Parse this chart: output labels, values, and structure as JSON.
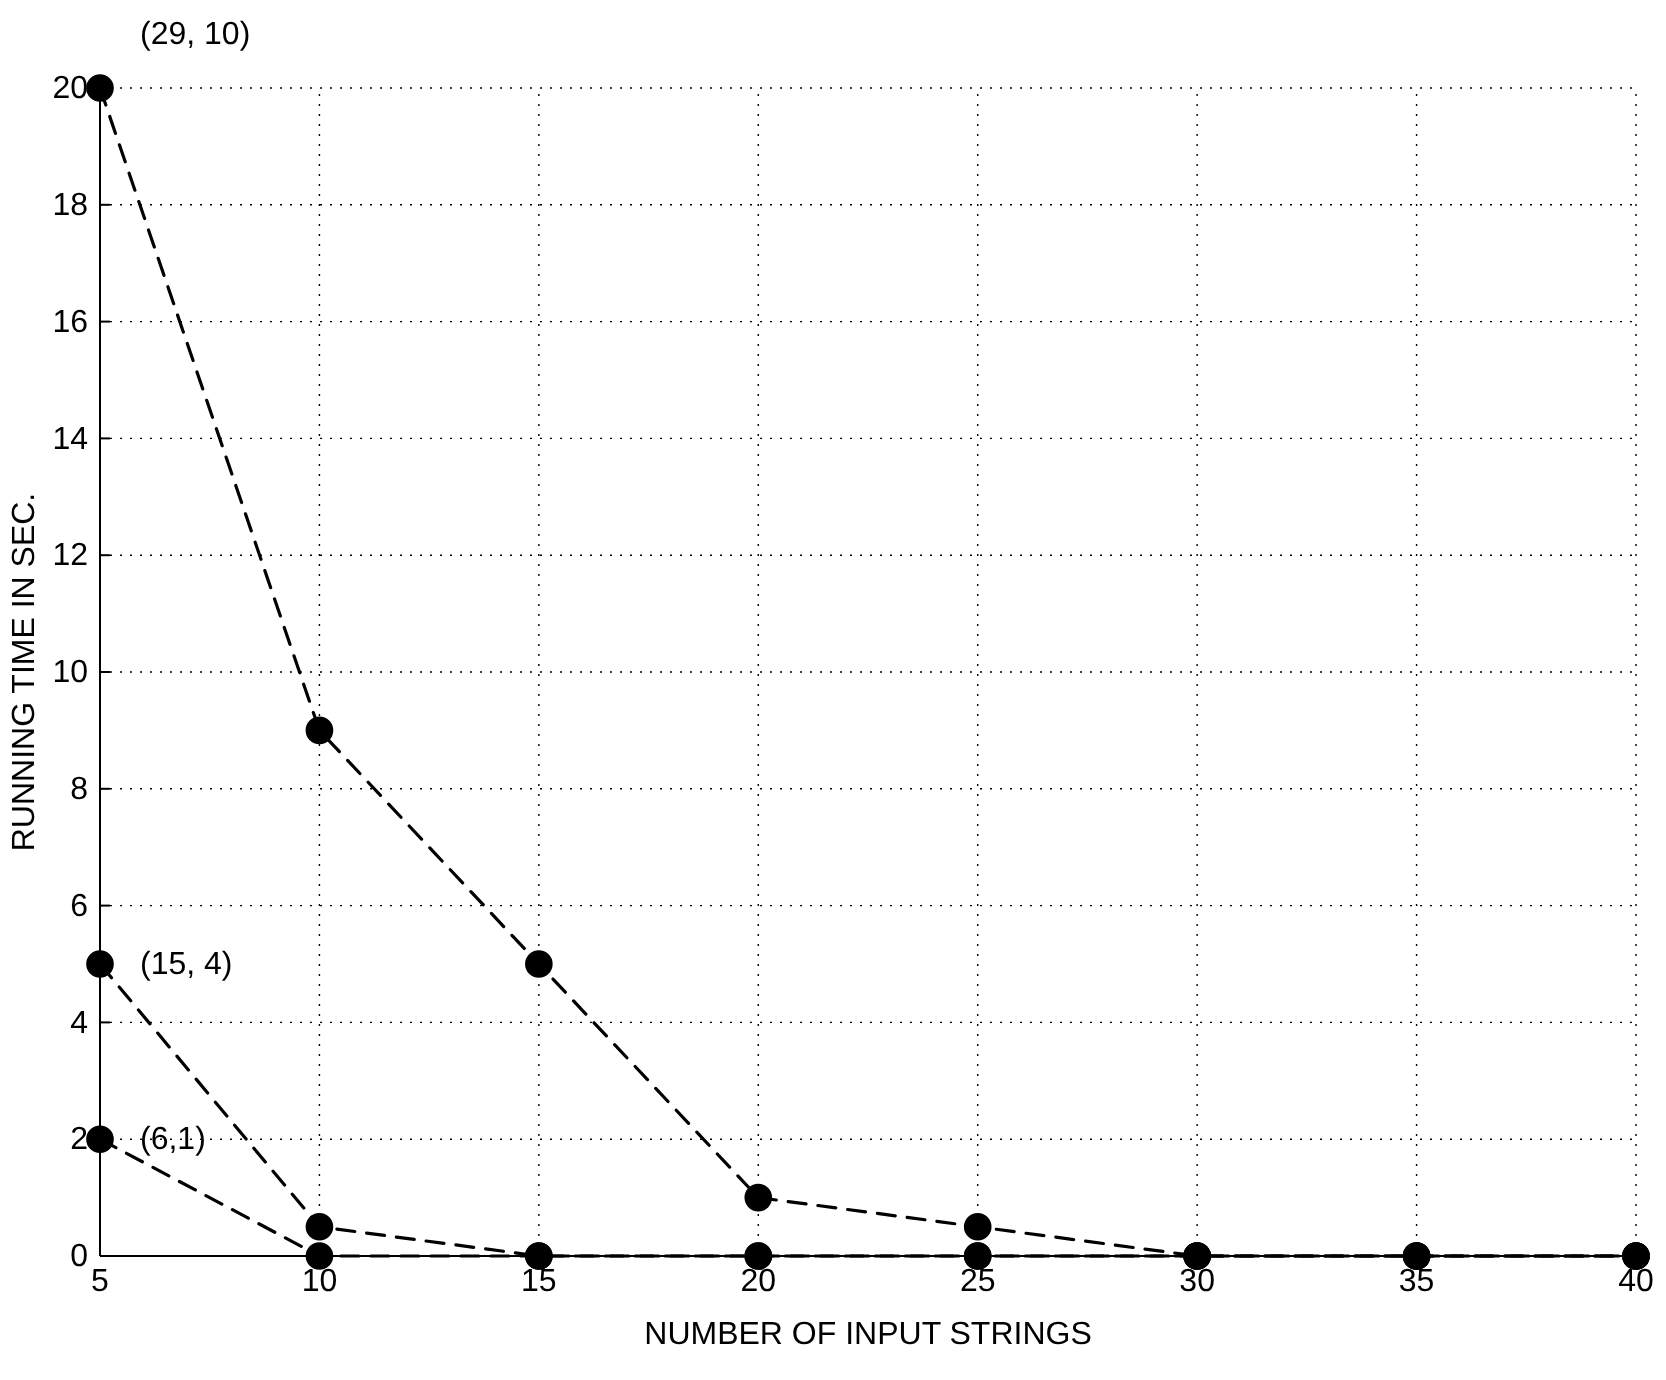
{
  "chart_data": {
    "type": "line",
    "xlabel": "NUMBER OF INPUT STRINGS",
    "ylabel": "RUNNING TIME IN SEC.",
    "x": [
      5,
      10,
      15,
      20,
      25,
      30,
      35,
      40
    ],
    "series": [
      {
        "name": "(29, 10)",
        "color": "#000000",
        "values": [
          20,
          9,
          5,
          1,
          0.5,
          0,
          0,
          0
        ]
      },
      {
        "name": "(15, 4)",
        "color": "#000000",
        "values": [
          5,
          0.5,
          0,
          0,
          0,
          0,
          0,
          0
        ]
      },
      {
        "name": "(6,1)",
        "color": "#000000",
        "values": [
          2,
          0,
          0,
          0,
          0,
          0,
          0,
          0
        ]
      }
    ],
    "xlim": [
      5,
      40
    ],
    "xticks": [
      5,
      10,
      15,
      20,
      25,
      30,
      35,
      40
    ],
    "ylim": [
      0,
      20
    ],
    "yticks": [
      0,
      2,
      4,
      6,
      8,
      10,
      12,
      14,
      16,
      18,
      20
    ],
    "grid": true,
    "marker": "circle",
    "line_style": "dashed"
  }
}
